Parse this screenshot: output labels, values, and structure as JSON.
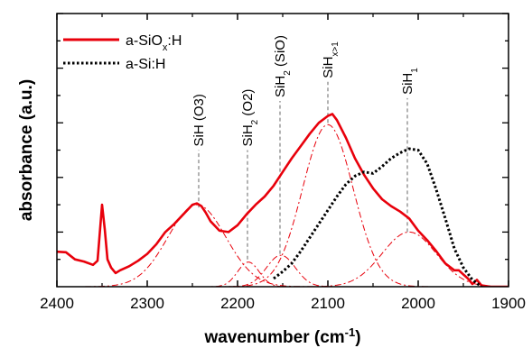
{
  "chart_data": {
    "type": "line",
    "title": "",
    "xlabel": "wavenumber (cm-1)",
    "xlabel_parts": {
      "base": "wavenumber (cm",
      "sup": "-1",
      "tail": ")"
    },
    "ylabel": "absorbance (a.u.)",
    "xlim": [
      2400,
      1900
    ],
    "x_reversed": true,
    "ylim": [
      0,
      1.0
    ],
    "x_ticks": [
      2400,
      2300,
      2200,
      2100,
      2000,
      1900
    ],
    "y_tick_labels_shown": false,
    "grid": false,
    "legend_position": "top-left",
    "series": [
      {
        "name": "a-SiOx:H",
        "name_parts": {
          "base": "a-SiO",
          "sub": "x",
          "tail": ":H"
        },
        "color": "#e8000b",
        "style": "solid",
        "x": [
          2400,
          2390,
          2380,
          2370,
          2360,
          2355,
          2350,
          2347,
          2344,
          2340,
          2335,
          2330,
          2320,
          2310,
          2300,
          2290,
          2280,
          2270,
          2260,
          2250,
          2245,
          2240,
          2235,
          2230,
          2220,
          2210,
          2200,
          2190,
          2180,
          2170,
          2160,
          2150,
          2140,
          2130,
          2120,
          2110,
          2100,
          2095,
          2090,
          2080,
          2070,
          2060,
          2050,
          2040,
          2030,
          2020,
          2010,
          2000,
          1990,
          1980,
          1970,
          1960,
          1955,
          1950,
          1945,
          1940,
          1935,
          1930,
          1920,
          1910,
          1900
        ],
        "y": [
          0.128,
          0.126,
          0.1,
          0.092,
          0.08,
          0.095,
          0.3,
          0.21,
          0.1,
          0.07,
          0.05,
          0.06,
          0.075,
          0.095,
          0.12,
          0.155,
          0.2,
          0.23,
          0.265,
          0.3,
          0.305,
          0.295,
          0.27,
          0.24,
          0.205,
          0.2,
          0.225,
          0.265,
          0.3,
          0.33,
          0.37,
          0.42,
          0.47,
          0.515,
          0.56,
          0.6,
          0.625,
          0.632,
          0.61,
          0.545,
          0.47,
          0.41,
          0.36,
          0.32,
          0.295,
          0.275,
          0.25,
          0.205,
          0.17,
          0.13,
          0.085,
          0.06,
          0.06,
          0.045,
          0.03,
          0.01,
          0.025,
          0.005,
          0.0,
          0.0,
          0.0
        ]
      },
      {
        "name": "a-Si:H",
        "name_parts": {
          "base": "a-Si",
          "sub": "",
          "tail": ":H"
        },
        "color": "#000000",
        "style": "dotted",
        "x": [
          2160,
          2150,
          2140,
          2130,
          2120,
          2110,
          2100,
          2090,
          2080,
          2070,
          2060,
          2050,
          2040,
          2030,
          2020,
          2010,
          2000,
          1990,
          1980,
          1970,
          1960,
          1950,
          1940,
          1930
        ],
        "y": [
          0.03,
          0.055,
          0.085,
          0.13,
          0.18,
          0.23,
          0.28,
          0.33,
          0.375,
          0.405,
          0.42,
          0.415,
          0.44,
          0.47,
          0.49,
          0.505,
          0.5,
          0.45,
          0.355,
          0.25,
          0.14,
          0.07,
          0.025,
          0.0
        ]
      }
    ],
    "fit_components": [
      {
        "center": 2245,
        "amplitude": 0.3,
        "width": 32,
        "color": "#e8000b",
        "style": "dashdot"
      },
      {
        "center": 2188,
        "amplitude": 0.09,
        "width": 12,
        "color": "#e8000b",
        "style": "dashdot"
      },
      {
        "center": 2152,
        "amplitude": 0.115,
        "width": 16,
        "color": "#e8000b",
        "style": "dashdot"
      },
      {
        "center": 2100,
        "amplitude": 0.593,
        "width": 28,
        "color": "#e8000b",
        "style": "dashdot"
      },
      {
        "center": 2010,
        "amplitude": 0.2,
        "width": 30,
        "color": "#e8000b",
        "style": "dashdot"
      }
    ],
    "annotations": [
      {
        "text": "SiH (O3)",
        "parts": {
          "base": "SiH (O3)",
          "sub": "",
          "tail": ""
        },
        "x": 2243,
        "line_from": 0.29,
        "line_to": 0.5
      },
      {
        "text": "SiH2 (O2)",
        "parts": {
          "base": "SiH",
          "sub": "2",
          "tail": " (O2)"
        },
        "x": 2189,
        "line_from": 0.1,
        "line_to": 0.5
      },
      {
        "text": "SiH2 (SiO)",
        "parts": {
          "base": "SiH",
          "sub": "2",
          "tail": " (SiO)"
        },
        "x": 2153,
        "line_from": 0.12,
        "line_to": 0.68
      },
      {
        "text": "SiHx>1",
        "parts": {
          "base": "SiH",
          "sub": "x>1",
          "tail": ""
        },
        "x": 2100,
        "line_from": 0.6,
        "line_to": 0.75
      },
      {
        "text": "SiH1",
        "parts": {
          "base": "SiH",
          "sub": "1",
          "tail": ""
        },
        "x": 2012,
        "line_from": 0.2,
        "line_to": 0.69
      }
    ]
  }
}
